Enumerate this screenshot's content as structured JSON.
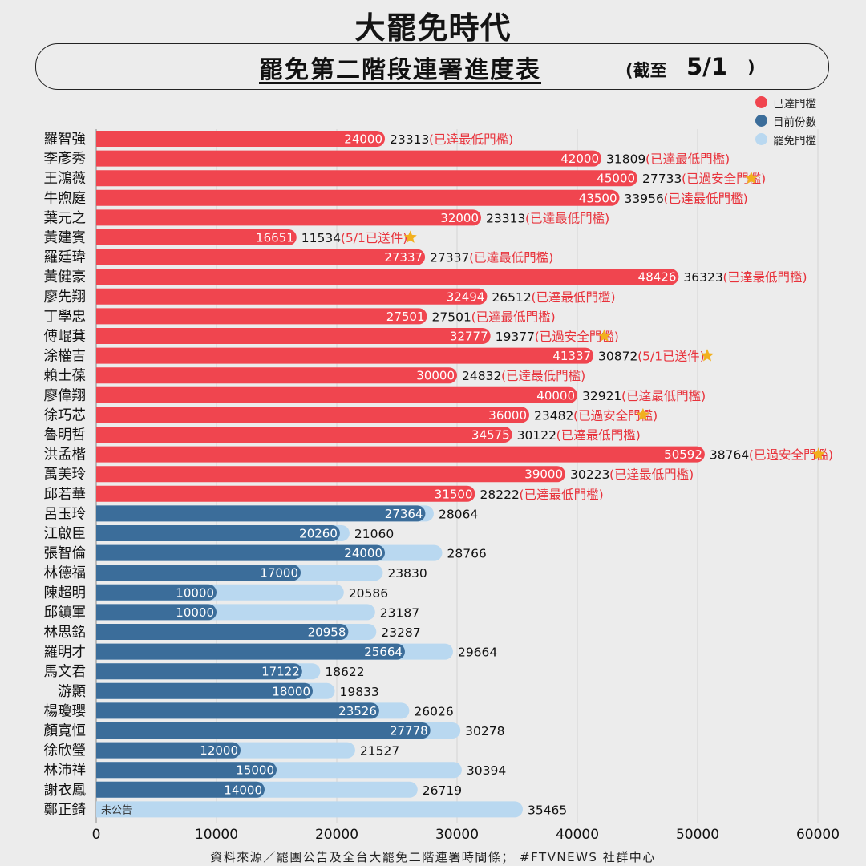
{
  "header": {
    "logo_text": "大罷免時代",
    "title": "罷免第二階段連署進度表",
    "paren_open": "(截至",
    "date": "5/1",
    "paren_close": ")"
  },
  "legend": [
    {
      "label": "已達門檻",
      "color": "#f0454f"
    },
    {
      "label": "目前份數",
      "color": "#3b6d9a"
    },
    {
      "label": "罷免門檻",
      "color": "#b9d8f0"
    }
  ],
  "colors": {
    "reached": "#f0454f",
    "current": "#3b6d9a",
    "threshold": "#b9d8f0",
    "status_text": "#e8323b",
    "star": "#f2b01e",
    "grid": "#d4d4d4"
  },
  "chart_data": {
    "type": "bar",
    "orientation": "horizontal",
    "xlim": [
      0,
      60000
    ],
    "xticks": [
      "0",
      "10000",
      "20000",
      "30000",
      "40000",
      "50000",
      "60000"
    ],
    "grid": true,
    "legend_position": "top-right",
    "series": [
      {
        "name": "已達門檻"
      },
      {
        "name": "目前份數"
      },
      {
        "name": "罷免門檻"
      }
    ],
    "reached": [
      {
        "name": "羅智強",
        "value": 24000,
        "threshold": 23313,
        "status": "(已達最低門檻)",
        "star": false
      },
      {
        "name": "李彥秀",
        "value": 42000,
        "threshold": 31809,
        "status": "(已達最低門檻)",
        "star": false
      },
      {
        "name": "王鴻薇",
        "value": 45000,
        "threshold": 27733,
        "status": "(已過安全門檻)",
        "star": true
      },
      {
        "name": "牛煦庭",
        "value": 43500,
        "threshold": 33956,
        "status": "(已達最低門檻)",
        "star": false
      },
      {
        "name": "葉元之",
        "value": 32000,
        "threshold": 23313,
        "status": "(已達最低門檻)",
        "star": false
      },
      {
        "name": "黃建賓",
        "value": 16651,
        "threshold": 11534,
        "status": "(5/1已送件)",
        "star": true
      },
      {
        "name": "羅廷瑋",
        "value": 27337,
        "threshold": 27337,
        "status": "(已達最低門檻)",
        "star": false
      },
      {
        "name": "黃健豪",
        "value": 48426,
        "threshold": 36323,
        "status": "(已達最低門檻)",
        "star": false
      },
      {
        "name": "廖先翔",
        "value": 32494,
        "threshold": 26512,
        "status": "(已達最低門檻)",
        "star": false
      },
      {
        "name": "丁學忠",
        "value": 27501,
        "threshold": 27501,
        "status": "(已達最低門檻)",
        "star": false
      },
      {
        "name": "傅崐萁",
        "value": 32777,
        "threshold": 19377,
        "status": "(已過安全門檻)",
        "star": true
      },
      {
        "name": "涂權吉",
        "value": 41337,
        "threshold": 30872,
        "status": "(5/1已送件)",
        "star": true
      },
      {
        "name": "賴士葆",
        "value": 30000,
        "threshold": 24832,
        "status": "(已達最低門檻)",
        "star": false
      },
      {
        "name": "廖偉翔",
        "value": 40000,
        "threshold": 32921,
        "status": "(已達最低門檻)",
        "star": false
      },
      {
        "name": "徐巧芯",
        "value": 36000,
        "threshold": 23482,
        "status": "(已過安全門檻)",
        "star": true
      },
      {
        "name": "魯明哲",
        "value": 34575,
        "threshold": 30122,
        "status": "(已達最低門檻)",
        "star": false
      },
      {
        "name": "洪孟楷",
        "value": 50592,
        "threshold": 38764,
        "status": "(已過安全門檻)",
        "star": true
      },
      {
        "name": "萬美玲",
        "value": 39000,
        "threshold": 30223,
        "status": "(已達最低門檻)",
        "star": false
      },
      {
        "name": "邱若華",
        "value": 31500,
        "threshold": 28222,
        "status": "(已達最低門檻)",
        "star": false
      }
    ],
    "pending": [
      {
        "name": "呂玉玲",
        "value": 27364,
        "threshold": 28064
      },
      {
        "name": "江啟臣",
        "value": 20260,
        "threshold": 21060
      },
      {
        "name": "張智倫",
        "value": 24000,
        "threshold": 28766
      },
      {
        "name": "林德福",
        "value": 17000,
        "threshold": 23830
      },
      {
        "name": "陳超明",
        "value": 10000,
        "threshold": 20586
      },
      {
        "name": "邱鎮軍",
        "value": 10000,
        "threshold": 23187
      },
      {
        "name": "林思銘",
        "value": 20958,
        "threshold": 23287
      },
      {
        "name": "羅明才",
        "value": 25664,
        "threshold": 29664
      },
      {
        "name": "馬文君",
        "value": 17122,
        "threshold": 18622
      },
      {
        "name": "游顥",
        "value": 18000,
        "threshold": 19833
      },
      {
        "name": "楊瓊瓔",
        "value": 23526,
        "threshold": 26026
      },
      {
        "name": "顏寬恒",
        "value": 27778,
        "threshold": 30278
      },
      {
        "name": "徐欣瑩",
        "value": 12000,
        "threshold": 21527
      },
      {
        "name": "林沛祥",
        "value": 15000,
        "threshold": 30394
      },
      {
        "name": "謝衣鳳",
        "value": 14000,
        "threshold": 26719
      },
      {
        "name": "鄭正錡",
        "value": null,
        "value_label": "未公告",
        "threshold": 35465
      }
    ]
  },
  "footer": "資料來源／罷團公告及全台大罷免二階連署時間條； #FTVNEWS 社群中心"
}
